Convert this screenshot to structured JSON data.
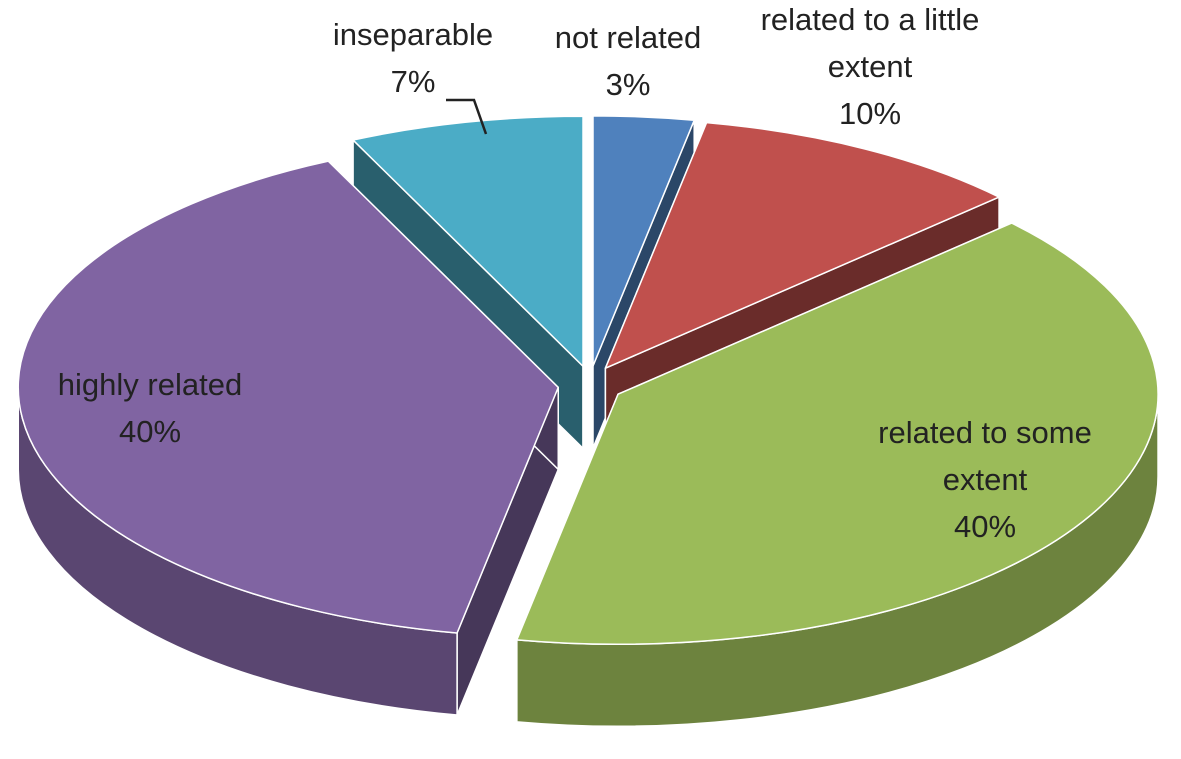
{
  "chart_data": {
    "type": "pie",
    "categories": [
      "not related",
      "related to a little extent",
      "related to some extent",
      "highly related",
      "inseparable"
    ],
    "values": [
      3,
      10,
      40,
      40,
      7
    ],
    "value_labels": [
      "3%",
      "10%",
      "40%",
      "40%",
      "7%"
    ],
    "colors": [
      "#4f81bd",
      "#c0504d",
      "#9bbb59",
      "#8064a2",
      "#4bacc6"
    ],
    "three_d": true,
    "exploded": true
  }
}
